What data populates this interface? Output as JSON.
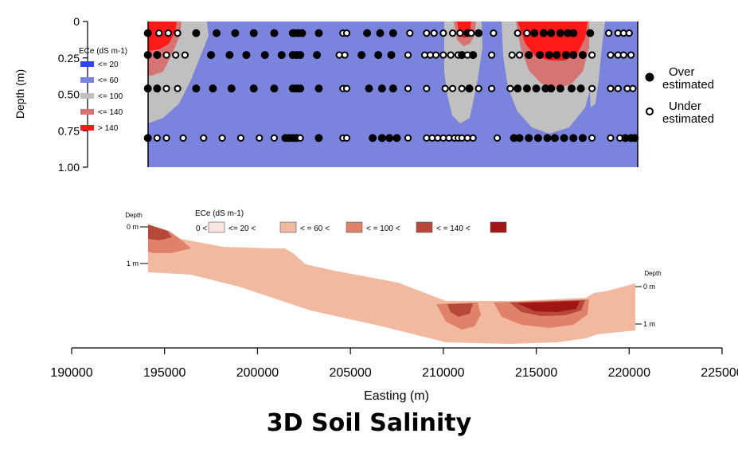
{
  "page_title": "3D Soil Salinity",
  "chart_data": [
    {
      "type": "heatmap",
      "title": "",
      "ylabel": "Depth (m)",
      "xlabel": "",
      "xlim": [
        190000,
        225000
      ],
      "transect_extent": [
        194100,
        220300
      ],
      "ylim": [
        0,
        1.0
      ],
      "y_reversed": true,
      "y_ticks": [
        "0",
        "0.25",
        "0.50",
        "0.75",
        "1.00"
      ],
      "legend_title": "ECe (dS m-1)",
      "legend_classes": [
        {
          "label": "<= 20",
          "color": "#2f45e6"
        },
        {
          "label": "<= 60",
          "color": "#7b84dc"
        },
        {
          "label": "<= 100",
          "color": "#c0c0c0"
        },
        {
          "label": "<= 140",
          "color": "#d67474"
        },
        {
          "label": ">  140",
          "color": "#ff1a1a"
        }
      ],
      "marker_legend": [
        {
          "label": "Over estimated",
          "lines": [
            "Over",
            "estimated"
          ],
          "filled": true
        },
        {
          "label": "Under estimated",
          "lines": [
            "Under",
            "estimated"
          ],
          "filled": false
        }
      ],
      "observation_depths": [
        0.08,
        0.23,
        0.46,
        0.8
      ],
      "points_by_depth": [
        {
          "depth": 0.08,
          "x": [
            194100,
            194700,
            195200,
            195700,
            196700,
            197800,
            198800,
            199800,
            200900,
            201900,
            202000,
            202200,
            202400,
            203300,
            204600,
            204800,
            205900,
            206600,
            207300,
            208200,
            209100,
            209500,
            210000,
            210500,
            210900,
            211300,
            211500,
            211900,
            212700,
            214000,
            214500,
            214900,
            215400,
            215800,
            216300,
            216700,
            217000,
            217900,
            218900,
            219400,
            219700,
            220000
          ],
          "filled": [
            1,
            0,
            0,
            0,
            1,
            1,
            1,
            1,
            1,
            1,
            1,
            1,
            1,
            1,
            0,
            0,
            1,
            1,
            1,
            0,
            0,
            0,
            0,
            0,
            0,
            1,
            0,
            1,
            0,
            0,
            0,
            1,
            1,
            1,
            1,
            1,
            1,
            1,
            0,
            0,
            0,
            0
          ]
        },
        {
          "depth": 0.23,
          "x": [
            194100,
            194600,
            195100,
            195600,
            196100,
            197500,
            198500,
            199400,
            200400,
            201300,
            201900,
            202100,
            202300,
            203200,
            204400,
            204700,
            205600,
            206500,
            207200,
            208100,
            209000,
            209300,
            209600,
            210000,
            210400,
            210800,
            211000,
            211300,
            211600,
            212600,
            213700,
            214100,
            214600,
            215200,
            215700,
            216100,
            216600,
            217000,
            217500,
            218000,
            219000,
            219400,
            219700,
            220100
          ],
          "filled": [
            1,
            1,
            0,
            0,
            0,
            1,
            1,
            1,
            1,
            1,
            1,
            1,
            1,
            1,
            0,
            0,
            1,
            1,
            1,
            0,
            0,
            0,
            0,
            0,
            0,
            0,
            1,
            0,
            1,
            0,
            0,
            0,
            1,
            1,
            1,
            1,
            1,
            1,
            1,
            0,
            0,
            0,
            0,
            0
          ]
        },
        {
          "depth": 0.46,
          "x": [
            194100,
            194600,
            195100,
            195700,
            196700,
            197600,
            198600,
            199800,
            200900,
            201900,
            202100,
            202300,
            203300,
            204600,
            204800,
            206000,
            206700,
            207300,
            208100,
            209100,
            210100,
            210500,
            211000,
            211400,
            211900,
            212600,
            213600,
            214000,
            214500,
            215000,
            215500,
            215800,
            216300,
            216900,
            217400,
            218000,
            219000,
            219400,
            219900,
            220200
          ],
          "filled": [
            1,
            1,
            0,
            0,
            1,
            1,
            1,
            1,
            1,
            1,
            1,
            1,
            1,
            0,
            0,
            1,
            1,
            1,
            0,
            0,
            0,
            0,
            0,
            1,
            0,
            0,
            0,
            1,
            1,
            1,
            1,
            1,
            1,
            1,
            1,
            0,
            0,
            0,
            0,
            0
          ]
        },
        {
          "depth": 0.8,
          "x": [
            194100,
            194600,
            195100,
            196000,
            197100,
            198100,
            199100,
            200100,
            200900,
            201500,
            201700,
            201900,
            202100,
            202300,
            203300,
            204600,
            204800,
            206200,
            206700,
            207100,
            207500,
            208100,
            209100,
            209400,
            209700,
            210000,
            210300,
            210600,
            210800,
            211000,
            211300,
            211600,
            212900,
            213800,
            214100,
            214600,
            215100,
            215600,
            216000,
            216500,
            217000,
            217500,
            218000,
            219000,
            219500,
            219800,
            220100,
            220300
          ],
          "filled": [
            1,
            0,
            0,
            0,
            0,
            0,
            0,
            0,
            0,
            1,
            1,
            1,
            1,
            0,
            1,
            0,
            0,
            1,
            1,
            1,
            1,
            0,
            0,
            0,
            0,
            0,
            0,
            0,
            0,
            0,
            0,
            0,
            0,
            1,
            1,
            1,
            1,
            1,
            1,
            1,
            1,
            1,
            0,
            0,
            0,
            1,
            1,
            1
          ]
        }
      ]
    },
    {
      "type": "area",
      "title": "",
      "xlabel": "Easting (m)",
      "ylabel": "",
      "x_ticks": [
        "190000",
        "195000",
        "200000",
        "205000",
        "210000",
        "215000",
        "220000",
        "225000"
      ],
      "xlim": [
        190000,
        225000
      ],
      "left_depth_label": {
        "title": "Depth",
        "ticks": [
          "0 m",
          "1 m"
        ]
      },
      "right_depth_label": {
        "title": "Depth",
        "ticks": [
          "0 m",
          "1 m"
        ]
      },
      "legend_title": "ECe (dS m-1)",
      "legend_prefix": "0 <",
      "legend_classes": [
        {
          "label": "<= 20 <",
          "color": "#fbe3df"
        },
        {
          "label": "< = 60 <",
          "color": "#f2b9a1"
        },
        {
          "label": "< = 100 <",
          "color": "#e0826a"
        },
        {
          "label": "< = 140 <",
          "color": "#b8483a"
        },
        {
          "label": "",
          "color": "#a11515"
        }
      ],
      "base_class_color": "#f2b9a1",
      "salinity_hotspots_easting": [
        194400,
        210900,
        215700
      ]
    }
  ]
}
